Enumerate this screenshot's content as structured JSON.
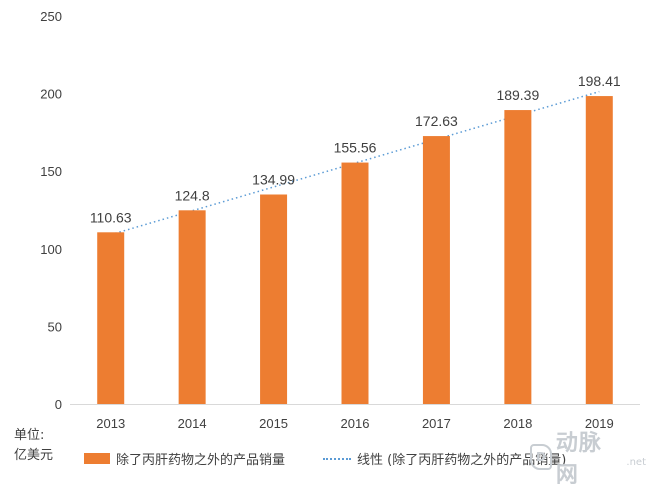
{
  "chart_data": {
    "type": "bar",
    "title": "",
    "xlabel": "",
    "ylabel": "",
    "categories": [
      "2013",
      "2014",
      "2015",
      "2016",
      "2017",
      "2018",
      "2019"
    ],
    "series": [
      {
        "name": "除了丙肝药物之外的产品销量",
        "values": [
          110.63,
          124.8,
          134.99,
          155.56,
          172.63,
          189.39,
          198.41
        ],
        "value_labels": [
          "110.63",
          "124.8",
          "134.99",
          "155.56",
          "172.63",
          "189.39",
          "198.41"
        ],
        "color": "#ed7d31"
      }
    ],
    "trendline": {
      "name": "线性 (除了丙肝药物之外的产品销量)",
      "style": "dotted",
      "color": "#5b9bd5"
    },
    "ylim": [
      0,
      250
    ],
    "yticks": [
      0,
      50,
      100,
      150,
      200,
      250
    ],
    "grid": false,
    "legend_position": "bottom"
  },
  "unit_label_line1": "单位:",
  "unit_label_line2": "亿美元",
  "watermark": {
    "logo_letter": "D",
    "text": "动脉网",
    "suffix": ".net"
  }
}
